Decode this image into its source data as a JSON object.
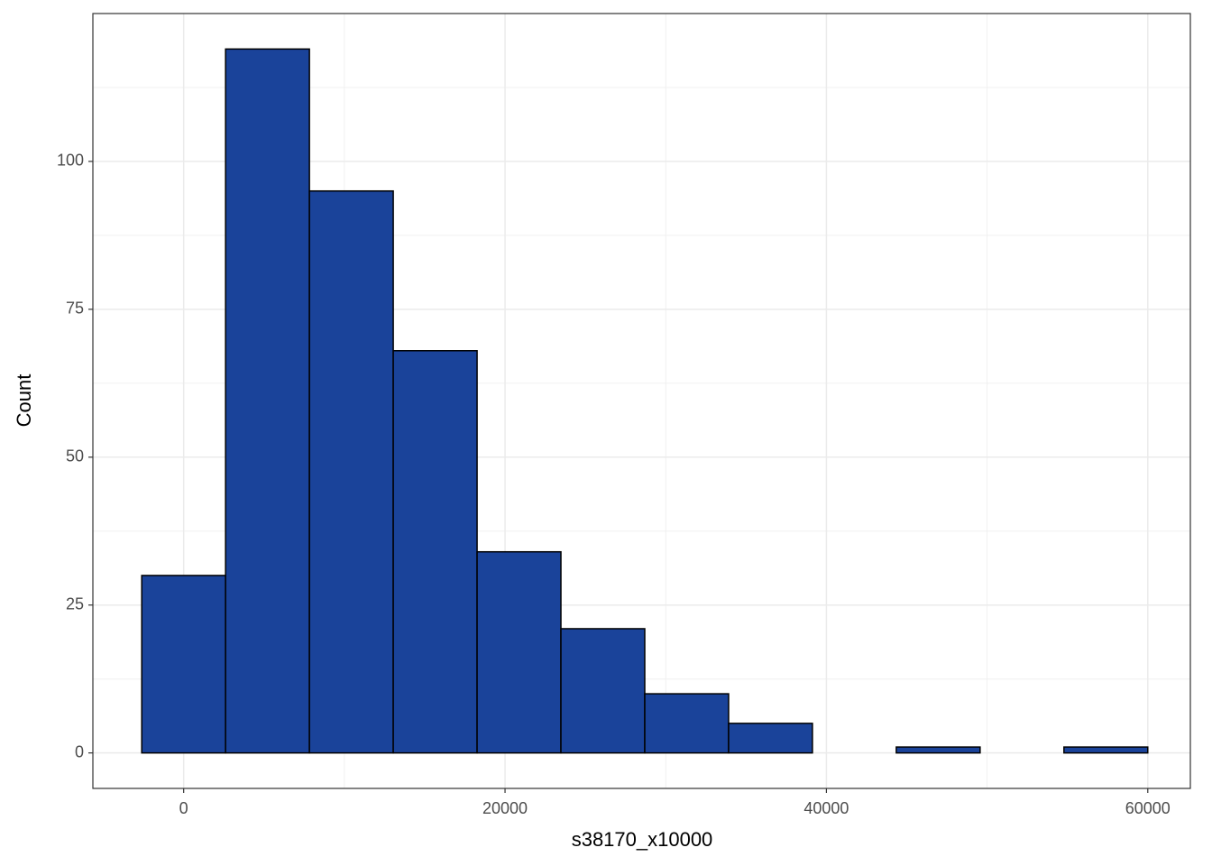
{
  "chart_data": {
    "type": "histogram",
    "xlabel": "s38170_x10000",
    "ylabel": "Count",
    "bins": [
      -2609,
      2609,
      7826,
      13043,
      18261,
      23478,
      28696,
      33913,
      39130,
      44348,
      49565,
      54783,
      60000
    ],
    "counts": [
      30,
      119,
      95,
      68,
      34,
      21,
      10,
      5,
      0,
      1,
      0,
      1
    ],
    "color": "#1a439a",
    "xlim": [
      -5650,
      62650
    ],
    "ylim": [
      -6,
      125
    ],
    "xticks": [
      0,
      20000,
      40000,
      60000
    ],
    "yticks": [
      0,
      25,
      50,
      75,
      100
    ],
    "grid": true
  }
}
